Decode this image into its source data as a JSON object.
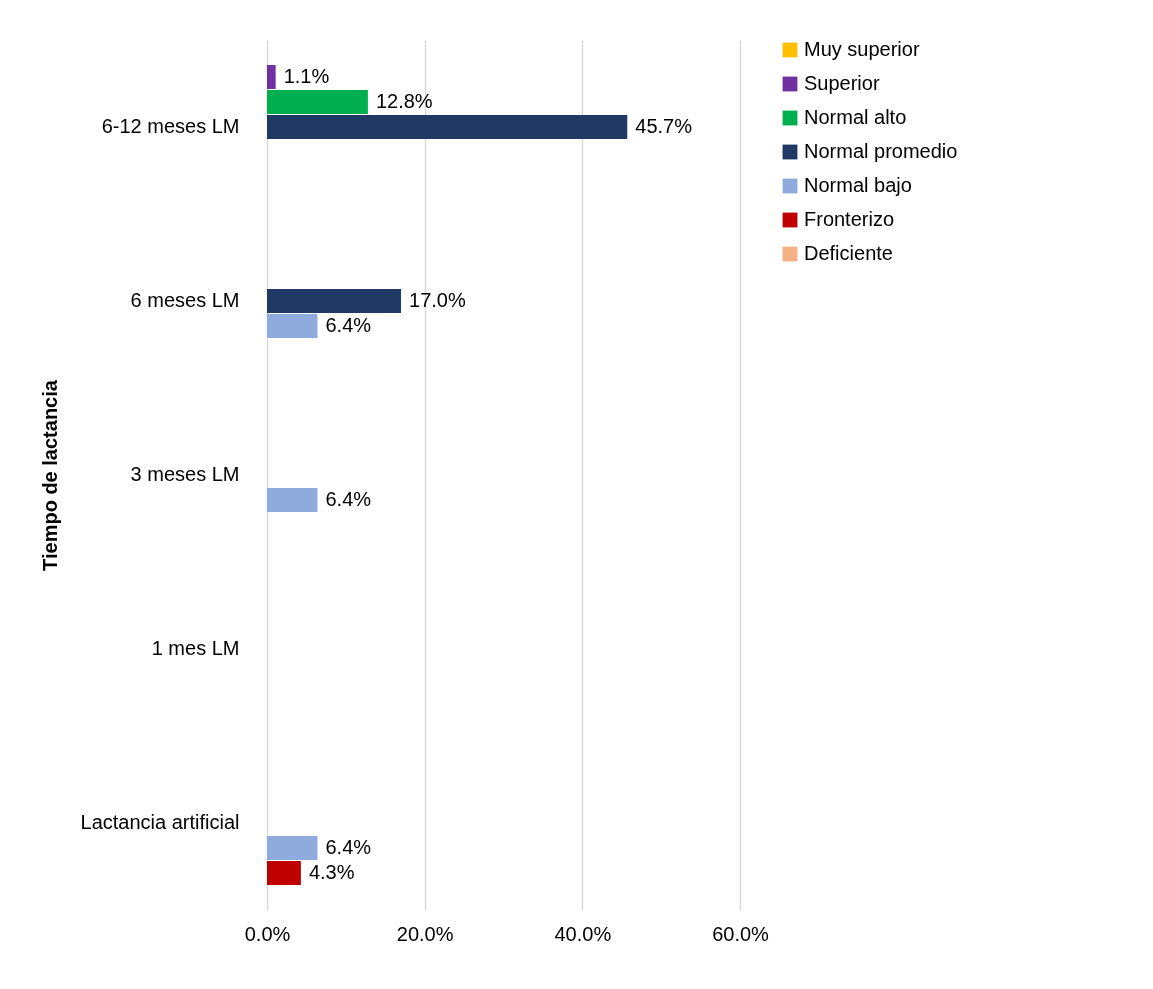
{
  "chart_data": {
    "type": "bar",
    "orientation": "horizontal",
    "ylabel": "Tiempo de lactancia",
    "categories": [
      "6-12 meses LM",
      "6 meses LM",
      "3 meses LM",
      "1 mes LM",
      "Lactancia artificial"
    ],
    "series": [
      {
        "name": "Muy superior",
        "color": "#ffc000",
        "values": [
          null,
          null,
          null,
          null,
          null
        ],
        "value_labels": [
          null,
          null,
          null,
          null,
          null
        ]
      },
      {
        "name": "Superior",
        "color": "#7030a0",
        "values": [
          1.1,
          null,
          null,
          null,
          null
        ],
        "value_labels": [
          "1.1%",
          null,
          null,
          null,
          null
        ]
      },
      {
        "name": "Normal alto",
        "color": "#00b050",
        "values": [
          12.8,
          null,
          null,
          null,
          null
        ],
        "value_labels": [
          "12.8%",
          null,
          null,
          null,
          null
        ]
      },
      {
        "name": "Normal promedio",
        "color": "#1f3864",
        "values": [
          45.7,
          17.0,
          null,
          null,
          null
        ],
        "value_labels": [
          "45.7%",
          "17.0%",
          null,
          null,
          null
        ]
      },
      {
        "name": "Normal bajo",
        "color": "#8faadc",
        "values": [
          null,
          6.4,
          6.4,
          null,
          6.4
        ],
        "value_labels": [
          null,
          "6.4%",
          "6.4%",
          null,
          "6.4%"
        ]
      },
      {
        "name": "Fronterizo",
        "color": "#c00000",
        "values": [
          null,
          null,
          null,
          null,
          4.3
        ],
        "value_labels": [
          null,
          null,
          null,
          null,
          "4.3%"
        ]
      },
      {
        "name": "Deficiente",
        "color": "#f4b183",
        "values": [
          null,
          null,
          null,
          null,
          null
        ],
        "value_labels": [
          null,
          null,
          null,
          null,
          null
        ]
      }
    ],
    "xlim": [
      0,
      60
    ],
    "xticks": [
      {
        "value": 0,
        "label": "0.0%"
      },
      {
        "value": 20,
        "label": "20.0%"
      },
      {
        "value": 40,
        "label": "40.0%"
      },
      {
        "value": 60,
        "label": "60.0%"
      }
    ],
    "grid": "x",
    "legend": "right"
  }
}
